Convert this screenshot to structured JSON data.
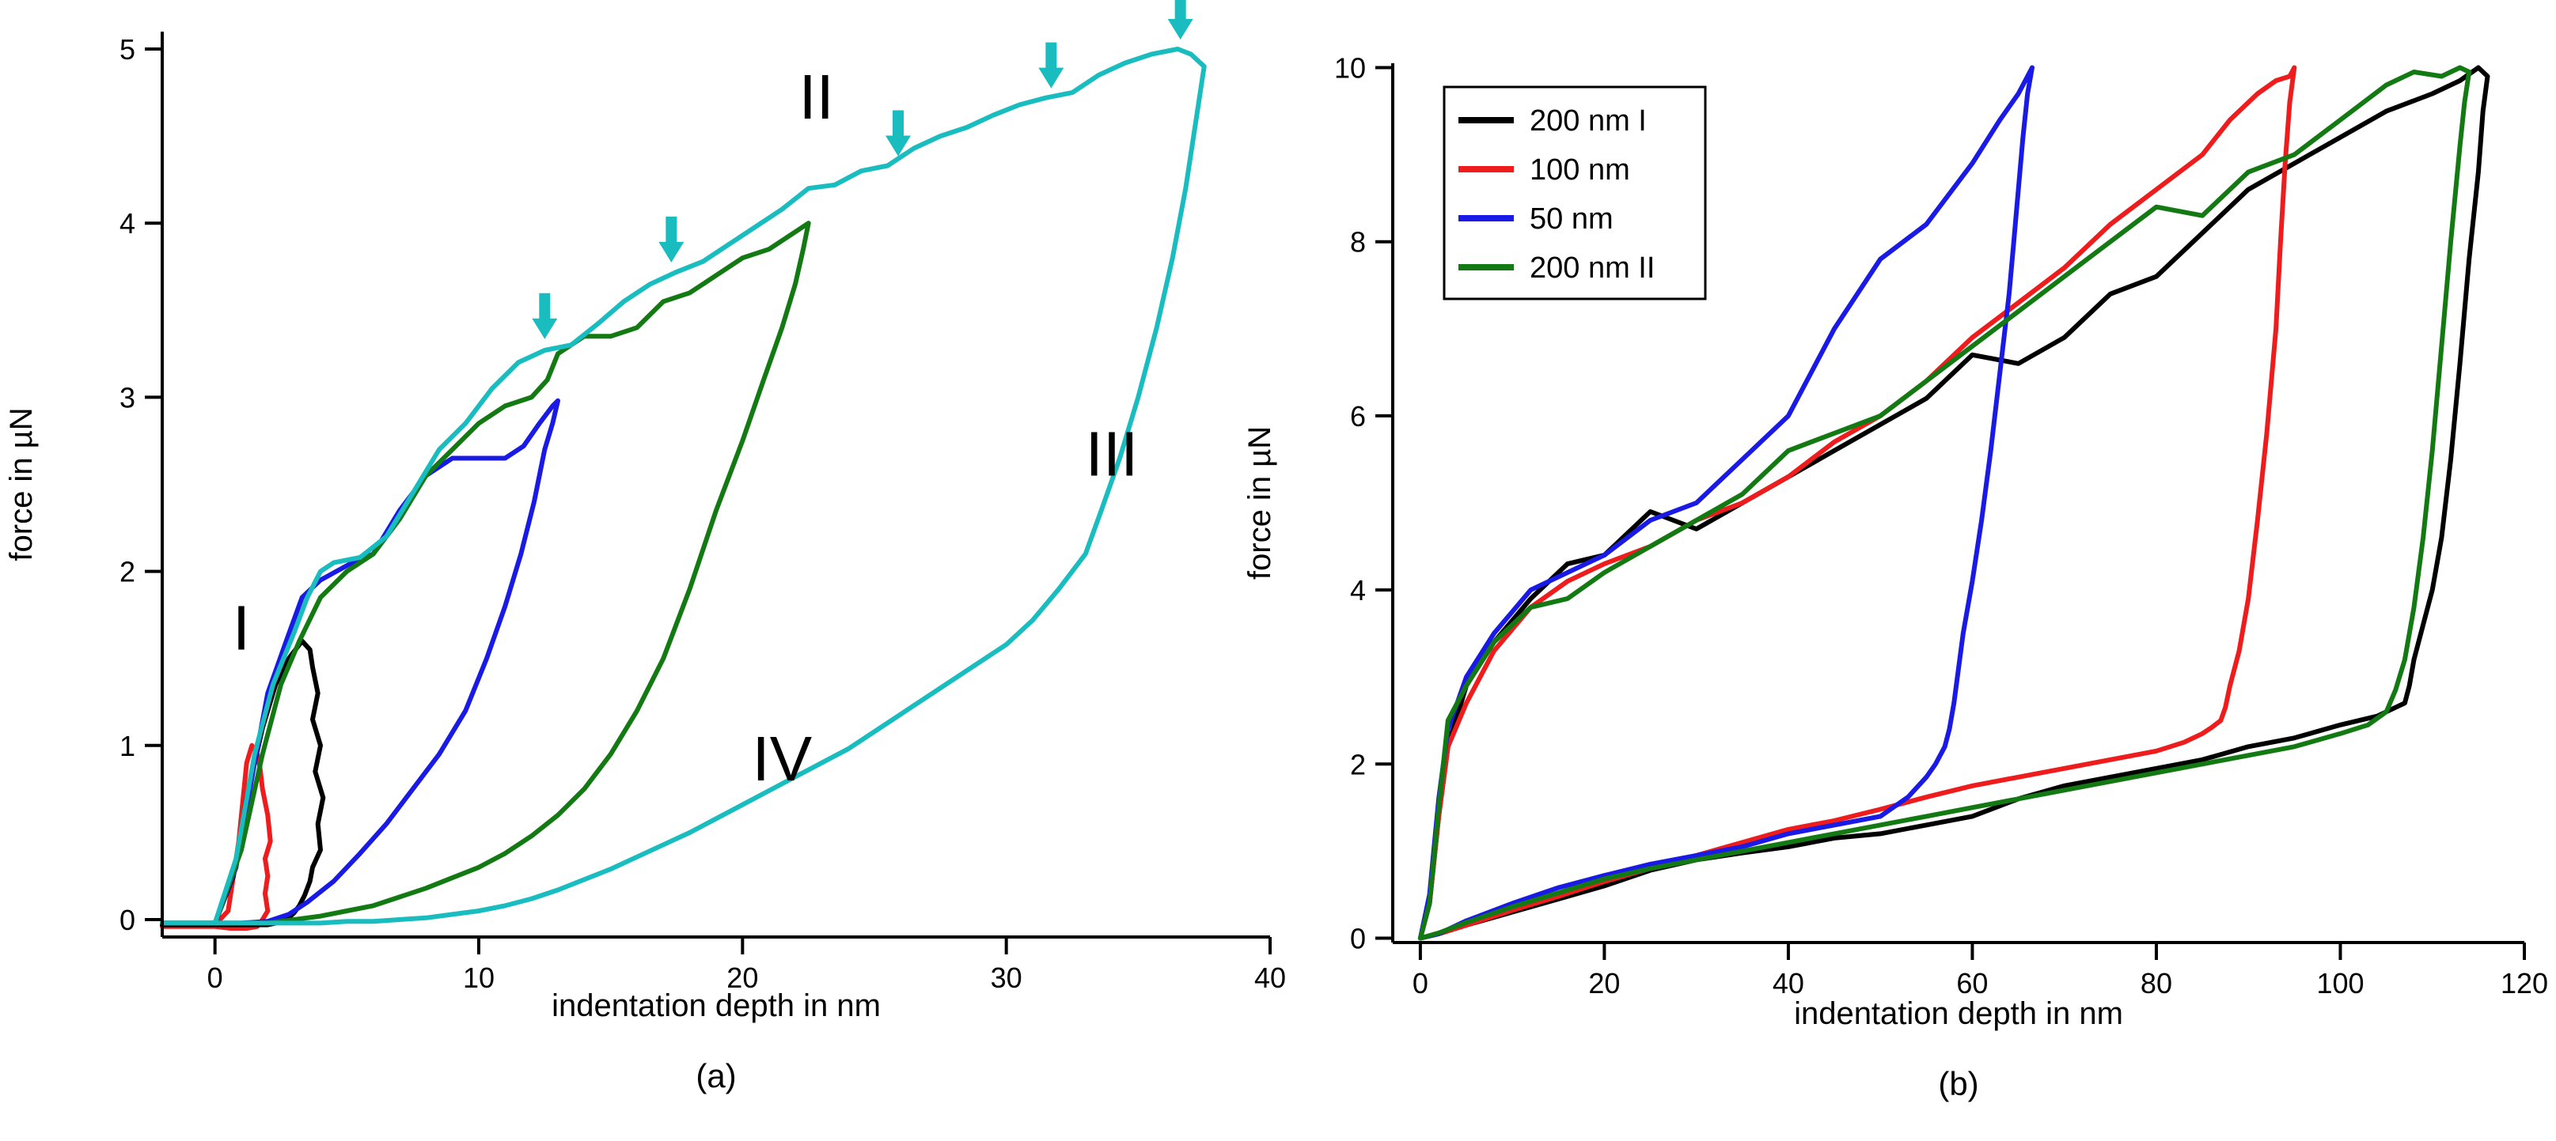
{
  "chart_data": [
    {
      "type": "line",
      "caption": "(a)",
      "xlabel": "indentation depth in nm",
      "ylabel": "force in µN",
      "xlim": [
        -2,
        40
      ],
      "ylim": [
        -0.1,
        5.1
      ],
      "xticks": [
        0,
        10,
        20,
        30,
        40
      ],
      "yticks": [
        0,
        1,
        2,
        3,
        4,
        5
      ],
      "annotations": [
        {
          "text": "I",
          "x": 1.0,
          "y": 1.55
        },
        {
          "text": "II",
          "x": 22.8,
          "y": 4.6
        },
        {
          "text": "III",
          "x": 34.0,
          "y": 2.55
        },
        {
          "text": "IV",
          "x": 21.5,
          "y": 0.8
        }
      ],
      "arrows": [
        {
          "x": 12.5,
          "y": 3.28,
          "color": "#19bcbf"
        },
        {
          "x": 17.3,
          "y": 3.72,
          "color": "#19bcbf"
        },
        {
          "x": 25.9,
          "y": 4.33,
          "color": "#19bcbf"
        },
        {
          "x": 31.7,
          "y": 4.72,
          "color": "#19bcbf"
        },
        {
          "x": 36.6,
          "y": 5.0,
          "color": "#19bcbf"
        }
      ],
      "series": [
        {
          "name": "red",
          "color": "#ee1c1c",
          "x": [
            -2,
            0,
            0.5,
            0.9,
            1.2,
            1.4,
            1.6,
            1.7,
            1.8,
            2.0,
            2.1,
            1.9,
            2.0,
            1.9,
            2.0,
            1.8,
            1.6,
            1.2,
            0.6,
            0,
            -2
          ],
          "y": [
            -0.03,
            -0.03,
            0.05,
            0.45,
            0.9,
            1.0,
            0.95,
            0.88,
            0.75,
            0.6,
            0.45,
            0.35,
            0.25,
            0.15,
            0.05,
            0.0,
            -0.04,
            -0.05,
            -0.05,
            -0.04,
            -0.04
          ]
        },
        {
          "name": "black",
          "color": "#000000",
          "x": [
            -2,
            0,
            0.7,
            1.2,
            1.8,
            2.3,
            2.8,
            3.3,
            3.6,
            3.7,
            3.9,
            3.7,
            4.0,
            3.8,
            4.1,
            3.9,
            4.0,
            3.7,
            3.6,
            3.4,
            3.2,
            3.0,
            2.8,
            2.6,
            2.3,
            2.0,
            1.5,
            1.0,
            0,
            -2
          ],
          "y": [
            -0.02,
            -0.02,
            0.25,
            0.7,
            1.1,
            1.35,
            1.5,
            1.6,
            1.55,
            1.45,
            1.3,
            1.15,
            1.0,
            0.85,
            0.7,
            0.55,
            0.4,
            0.3,
            0.22,
            0.14,
            0.08,
            0.04,
            0.01,
            -0.01,
            -0.02,
            -0.03,
            -0.03,
            -0.03,
            -0.03,
            -0.03
          ]
        },
        {
          "name": "blue",
          "color": "#1a1ae6",
          "x": [
            -2,
            0,
            0.8,
            1.5,
            2.0,
            2.7,
            3.3,
            4.0,
            4.6,
            5.2,
            6.0,
            7.0,
            8.0,
            9.0,
            10.0,
            11.0,
            11.7,
            12.3,
            12.8,
            13.0,
            12.8,
            12.5,
            12.1,
            11.6,
            11.0,
            10.3,
            9.5,
            8.5,
            7.5,
            6.5,
            5.5,
            4.5,
            3.5,
            2.8,
            2.0,
            1.0,
            0,
            -2
          ],
          "y": [
            -0.02,
            -0.02,
            0.3,
            0.9,
            1.3,
            1.6,
            1.85,
            1.95,
            2.0,
            2.05,
            2.1,
            2.35,
            2.55,
            2.65,
            2.65,
            2.65,
            2.72,
            2.85,
            2.95,
            2.98,
            2.85,
            2.7,
            2.4,
            2.1,
            1.8,
            1.5,
            1.2,
            0.95,
            0.75,
            0.55,
            0.38,
            0.22,
            0.1,
            0.03,
            -0.01,
            -0.02,
            -0.02,
            -0.02
          ]
        },
        {
          "name": "green",
          "color": "#137a13",
          "x": [
            -2,
            0,
            1.0,
            1.8,
            2.5,
            3.2,
            4.0,
            5.0,
            6.0,
            7.0,
            8.0,
            9.0,
            10.0,
            11.0,
            12.0,
            12.6,
            13.0,
            14.0,
            15.0,
            16.0,
            17.0,
            18.0,
            19.0,
            20.0,
            21.0,
            22.0,
            22.5,
            22.3,
            22.0,
            21.5,
            20.8,
            20.0,
            19.0,
            18.0,
            17.0,
            16.0,
            15.0,
            14.0,
            13.0,
            12.0,
            11.0,
            10.0,
            9.0,
            8.0,
            7.0,
            6.0,
            5.0,
            4.0,
            3.0,
            2.0,
            0,
            -2
          ],
          "y": [
            -0.02,
            -0.02,
            0.4,
            0.95,
            1.35,
            1.6,
            1.85,
            2.0,
            2.1,
            2.3,
            2.55,
            2.7,
            2.85,
            2.95,
            3.0,
            3.1,
            3.25,
            3.35,
            3.35,
            3.4,
            3.55,
            3.6,
            3.7,
            3.8,
            3.85,
            3.95,
            4.0,
            3.85,
            3.65,
            3.4,
            3.1,
            2.75,
            2.35,
            1.9,
            1.5,
            1.2,
            0.95,
            0.75,
            0.6,
            0.48,
            0.38,
            0.3,
            0.24,
            0.18,
            0.13,
            0.08,
            0.05,
            0.02,
            0.0,
            -0.02,
            -0.02,
            -0.02
          ]
        },
        {
          "name": "cyan",
          "color": "#19bcbf",
          "x": [
            -2,
            0,
            0.8,
            1.5,
            2.2,
            3.0,
            3.5,
            4.0,
            4.5,
            5.5,
            6.5,
            7.5,
            8.5,
            9.5,
            10.5,
            11.5,
            12.5,
            13.5,
            14.5,
            15.5,
            16.5,
            17.5,
            18.5,
            19.5,
            20.5,
            21.5,
            22.5,
            23.5,
            24.5,
            25.5,
            26.5,
            27.5,
            28.5,
            29.5,
            30.5,
            31.5,
            32.5,
            33.5,
            34.5,
            35.5,
            36.5,
            37.0,
            37.5,
            37.2,
            36.8,
            36.3,
            35.7,
            35.0,
            34.3,
            33.6,
            33.0,
            32.0,
            31.0,
            30.0,
            29.0,
            28.0,
            27.0,
            26.0,
            25.0,
            24.0,
            23.0,
            22.0,
            21.0,
            20.0,
            19.0,
            18.0,
            17.0,
            16.0,
            15.0,
            14.0,
            13.0,
            12.0,
            11.0,
            10.0,
            9.0,
            8.0,
            7.0,
            6.0,
            5.0,
            4.0,
            3.0,
            2.0,
            0,
            -2
          ],
          "y": [
            -0.02,
            -0.02,
            0.35,
            0.95,
            1.35,
            1.65,
            1.85,
            2.0,
            2.05,
            2.08,
            2.2,
            2.45,
            2.7,
            2.85,
            3.05,
            3.2,
            3.27,
            3.3,
            3.42,
            3.55,
            3.65,
            3.72,
            3.78,
            3.88,
            3.98,
            4.08,
            4.2,
            4.22,
            4.3,
            4.33,
            4.43,
            4.5,
            4.55,
            4.62,
            4.68,
            4.72,
            4.75,
            4.85,
            4.92,
            4.97,
            5.0,
            4.97,
            4.9,
            4.6,
            4.2,
            3.8,
            3.4,
            3.0,
            2.65,
            2.35,
            2.1,
            1.9,
            1.72,
            1.58,
            1.48,
            1.38,
            1.28,
            1.18,
            1.08,
            0.98,
            0.9,
            0.82,
            0.74,
            0.66,
            0.58,
            0.5,
            0.43,
            0.36,
            0.29,
            0.23,
            0.17,
            0.12,
            0.08,
            0.05,
            0.03,
            0.01,
            0.0,
            -0.01,
            -0.01,
            -0.02,
            -0.02,
            -0.02,
            -0.02,
            -0.02
          ]
        }
      ]
    },
    {
      "type": "line",
      "caption": "(b)",
      "xlabel": "indentation depth in nm",
      "ylabel": "force in µN",
      "xlim": [
        -3,
        120
      ],
      "ylim": [
        -0.05,
        10.05
      ],
      "xticks": [
        0,
        20,
        40,
        60,
        80,
        100,
        120
      ],
      "yticks": [
        0,
        2,
        4,
        6,
        8,
        10
      ],
      "legend": [
        "200 nm I",
        "100 nm",
        "50 nm",
        "200 nm II"
      ],
      "series": [
        {
          "name": "200 nm I",
          "color": "#000000",
          "x": [
            0,
            1,
            2,
            3,
            5,
            8,
            12,
            16,
            20,
            25,
            30,
            35,
            40,
            45,
            50,
            55,
            60,
            65,
            70,
            75,
            80,
            85,
            90,
            95,
            100,
            105,
            110,
            113,
            115,
            116,
            115.5,
            115,
            114,
            113,
            112,
            111,
            110,
            109,
            108,
            107.5,
            107,
            106,
            104,
            100,
            95,
            90,
            85,
            80,
            75,
            70,
            65,
            60,
            55,
            50,
            45,
            40,
            35,
            30,
            25,
            20,
            15,
            10,
            5,
            2,
            0
          ],
          "y": [
            0.0,
            0.4,
            1.4,
            2.2,
            2.9,
            3.4,
            3.9,
            4.3,
            4.4,
            4.9,
            4.7,
            5.0,
            5.3,
            5.6,
            5.9,
            6.2,
            6.7,
            6.6,
            6.9,
            7.4,
            7.6,
            8.1,
            8.6,
            8.9,
            9.2,
            9.5,
            9.7,
            9.85,
            10.0,
            9.9,
            9.5,
            8.8,
            7.8,
            6.6,
            5.5,
            4.6,
            4.0,
            3.6,
            3.2,
            2.9,
            2.7,
            2.65,
            2.55,
            2.45,
            2.3,
            2.2,
            2.05,
            1.95,
            1.85,
            1.75,
            1.6,
            1.4,
            1.3,
            1.2,
            1.15,
            1.05,
            0.98,
            0.9,
            0.78,
            0.6,
            0.45,
            0.3,
            0.15,
            0.05,
            0.0
          ]
        },
        {
          "name": "100 nm",
          "color": "#ee1c1c",
          "x": [
            0,
            1,
            2,
            3,
            5,
            8,
            12,
            16,
            20,
            25,
            30,
            35,
            40,
            45,
            50,
            55,
            60,
            65,
            70,
            75,
            80,
            85,
            88,
            91,
            93,
            94.5,
            95,
            94.5,
            94,
            93.5,
            93,
            92,
            91,
            90,
            89,
            88,
            87.5,
            87,
            86,
            85,
            83,
            80,
            75,
            70,
            65,
            60,
            55,
            50,
            45,
            40,
            35,
            30,
            25,
            20,
            15,
            10,
            5,
            2,
            0
          ],
          "y": [
            0.0,
            0.4,
            1.4,
            2.2,
            2.7,
            3.3,
            3.8,
            4.1,
            4.3,
            4.5,
            4.8,
            5.0,
            5.3,
            5.7,
            6.0,
            6.4,
            6.9,
            7.3,
            7.7,
            8.2,
            8.6,
            9.0,
            9.4,
            9.7,
            9.85,
            9.9,
            10.0,
            9.6,
            8.9,
            8.0,
            7.0,
            5.8,
            4.8,
            3.9,
            3.3,
            2.9,
            2.65,
            2.5,
            2.42,
            2.35,
            2.25,
            2.15,
            2.05,
            1.95,
            1.85,
            1.75,
            1.62,
            1.48,
            1.35,
            1.25,
            1.1,
            0.95,
            0.8,
            0.65,
            0.48,
            0.32,
            0.15,
            0.05,
            0.0
          ]
        },
        {
          "name": "50 nm",
          "color": "#1a1ae6",
          "x": [
            0,
            1,
            2,
            3,
            5,
            8,
            12,
            16,
            20,
            25,
            30,
            35,
            40,
            45,
            50,
            55,
            60,
            63,
            65,
            66,
            66.5,
            66,
            65.5,
            65,
            64.5,
            64,
            63,
            62,
            61,
            60,
            59,
            58.5,
            58,
            57.5,
            57,
            56,
            55,
            53,
            50,
            45,
            40,
            35,
            30,
            25,
            20,
            15,
            10,
            5,
            2,
            0
          ],
          "y": [
            0.0,
            0.5,
            1.6,
            2.4,
            3.0,
            3.5,
            4.0,
            4.2,
            4.4,
            4.8,
            5.0,
            5.5,
            6.0,
            7.0,
            7.8,
            8.2,
            8.9,
            9.4,
            9.7,
            9.9,
            10.0,
            9.7,
            9.2,
            8.6,
            8.0,
            7.4,
            6.5,
            5.6,
            4.8,
            4.1,
            3.5,
            3.1,
            2.7,
            2.4,
            2.2,
            2.0,
            1.85,
            1.62,
            1.4,
            1.3,
            1.2,
            1.05,
            0.95,
            0.85,
            0.72,
            0.58,
            0.4,
            0.2,
            0.05,
            0.0
          ]
        },
        {
          "name": "200 nm II",
          "color": "#137a13",
          "x": [
            0,
            1,
            2,
            3,
            5,
            8,
            12,
            16,
            20,
            25,
            30,
            35,
            40,
            45,
            50,
            55,
            60,
            65,
            70,
            75,
            80,
            85,
            90,
            95,
            100,
            105,
            108,
            111,
            113,
            114,
            113.5,
            113,
            112,
            111,
            110,
            109,
            108,
            107,
            106,
            105,
            103,
            100,
            95,
            90,
            85,
            80,
            75,
            70,
            65,
            60,
            55,
            50,
            45,
            40,
            35,
            30,
            25,
            20,
            15,
            10,
            5,
            2,
            0
          ],
          "y": [
            0.0,
            0.4,
            1.5,
            2.5,
            2.9,
            3.4,
            3.8,
            3.9,
            4.2,
            4.5,
            4.8,
            5.1,
            5.6,
            5.8,
            6.0,
            6.4,
            6.8,
            7.2,
            7.6,
            8.0,
            8.4,
            8.3,
            8.8,
            9.0,
            9.4,
            9.8,
            9.95,
            9.9,
            10.0,
            9.95,
            9.6,
            9.1,
            8.0,
            6.8,
            5.6,
            4.6,
            3.8,
            3.2,
            2.85,
            2.6,
            2.45,
            2.35,
            2.2,
            2.1,
            2.0,
            1.9,
            1.8,
            1.7,
            1.6,
            1.5,
            1.4,
            1.3,
            1.2,
            1.1,
            1.0,
            0.9,
            0.8,
            0.68,
            0.52,
            0.36,
            0.18,
            0.06,
            0.0
          ]
        }
      ]
    }
  ]
}
